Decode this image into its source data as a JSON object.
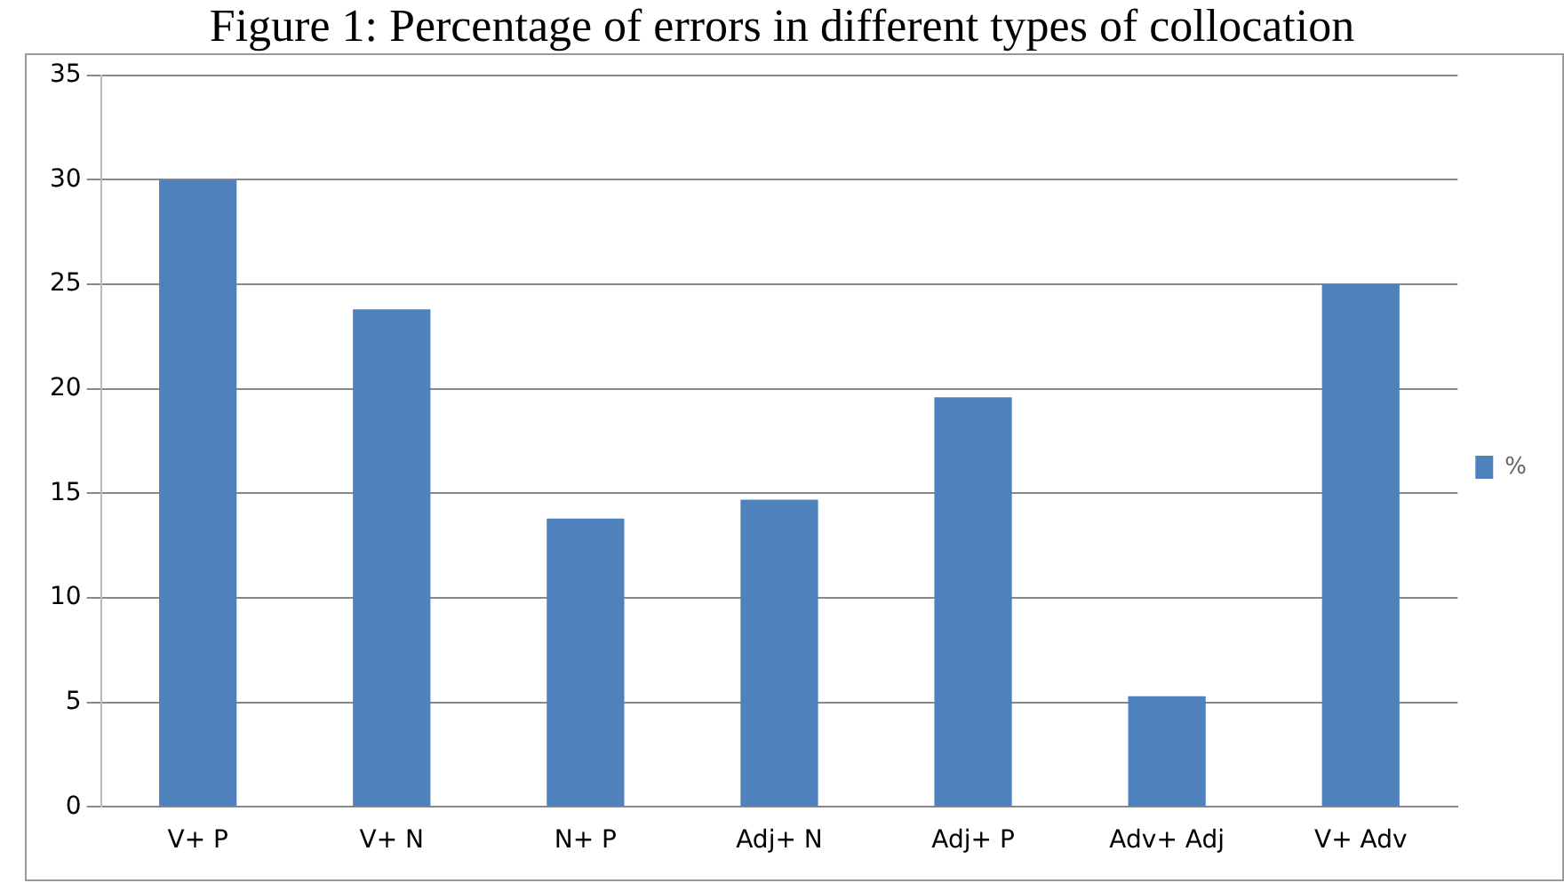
{
  "chart_data": {
    "type": "bar",
    "title": "Figure 1: Percentage of errors in different types of collocation",
    "categories": [
      "V+ P",
      "V+ N",
      "N+ P",
      "Adj+ N",
      "Adj+ P",
      "Adv+ Adj",
      "V+ Adv"
    ],
    "series": [
      {
        "name": "%",
        "color": "#4f81bd",
        "values": [
          30,
          23.8,
          13.8,
          14.7,
          19.6,
          5.3,
          25
        ]
      }
    ],
    "ylim": [
      0,
      35
    ],
    "yticks": [
      0,
      5,
      10,
      15,
      20,
      25,
      30,
      35
    ],
    "grid": "y",
    "legend": "right"
  }
}
